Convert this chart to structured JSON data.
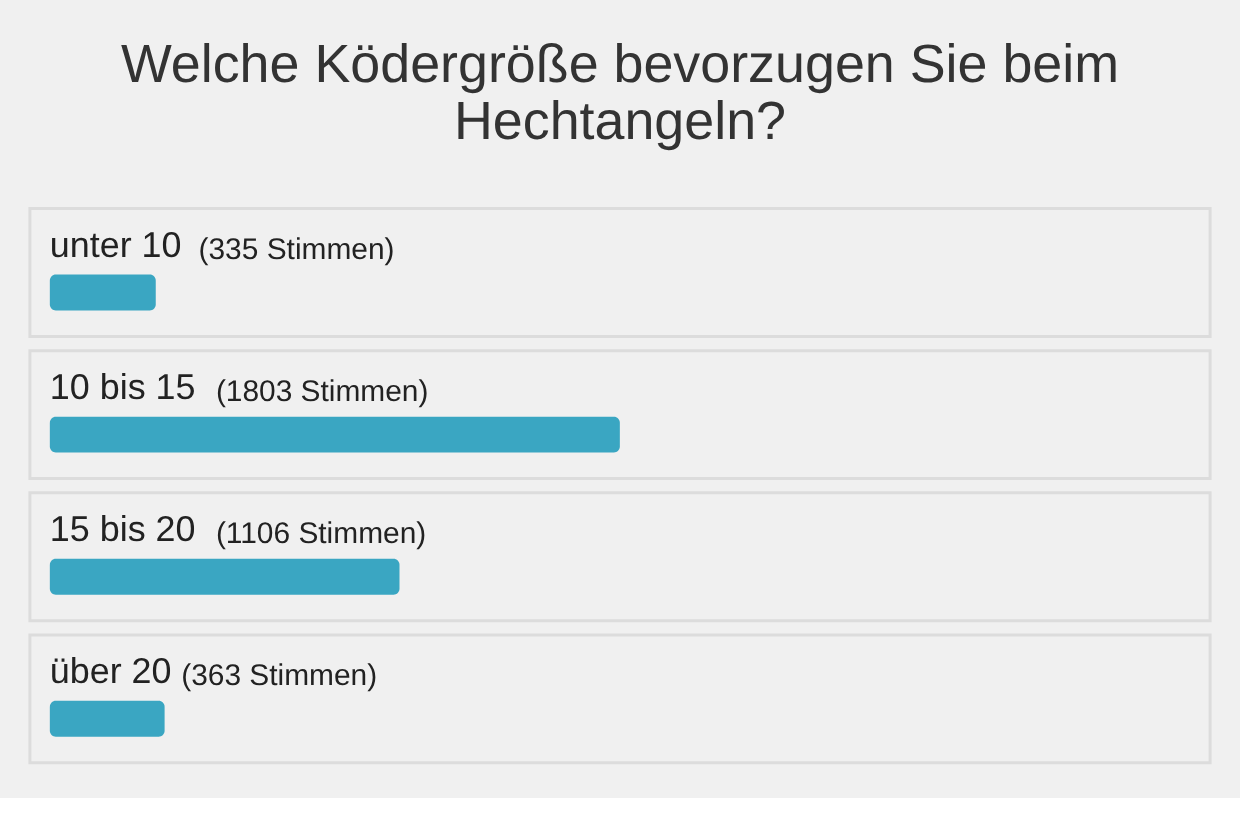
{
  "chart_data": {
    "type": "bar",
    "orientation": "horizontal",
    "title": [
      "Welche Ködergröße bevorzugen Sie beim",
      "Hechtangeln?"
    ],
    "categories": [
      "unter 10",
      "10 bis 15",
      "15 bis 20",
      "über 20"
    ],
    "values": [
      335,
      1803,
      1106,
      363
    ],
    "value_labels": [
      "(335 Stimmen)",
      "(1803 Stimmen)",
      "(1106 Stimmen)",
      "(363 Stimmen)"
    ],
    "color": "#3aa6c2",
    "tick_labels": false
  }
}
